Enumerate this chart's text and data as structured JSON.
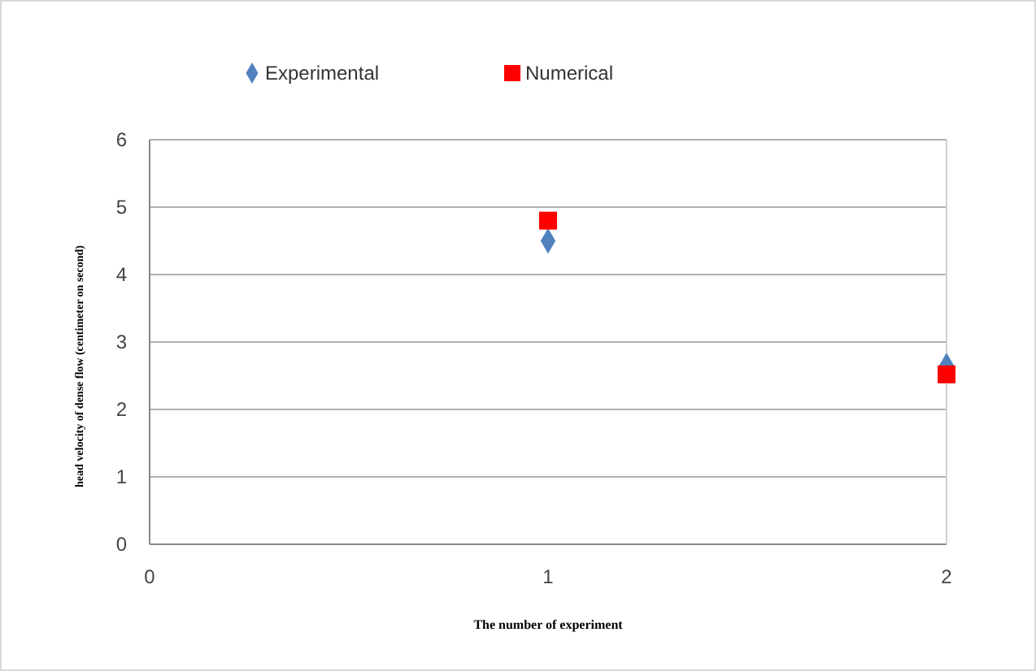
{
  "chart_data": {
    "type": "scatter",
    "xlabel": "The number of experiment",
    "ylabel": "head velocity of dense flow (centimeter on second)",
    "x": [
      1,
      2
    ],
    "xlim": [
      0,
      2
    ],
    "xticks": [
      0,
      1,
      2
    ],
    "ylim": [
      0,
      6
    ],
    "yticks": [
      0,
      1,
      2,
      3,
      4,
      5,
      6
    ],
    "grid": "y",
    "legend": "top",
    "series": [
      {
        "name": "Experimental",
        "color": "#4f81bd",
        "marker": "diamond",
        "values": [
          4.5,
          2.65
        ]
      },
      {
        "name": "Numerical",
        "color": "#ff0000",
        "marker": "square",
        "values": [
          4.8,
          2.52
        ]
      }
    ]
  }
}
